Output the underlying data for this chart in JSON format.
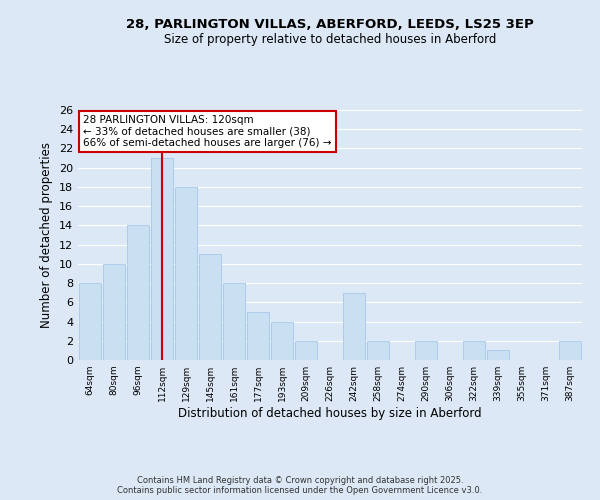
{
  "title1": "28, PARLINGTON VILLAS, ABERFORD, LEEDS, LS25 3EP",
  "title2": "Size of property relative to detached houses in Aberford",
  "xlabel": "Distribution of detached houses by size in Aberford",
  "ylabel": "Number of detached properties",
  "categories": [
    "64sqm",
    "80sqm",
    "96sqm",
    "112sqm",
    "129sqm",
    "145sqm",
    "161sqm",
    "177sqm",
    "193sqm",
    "209sqm",
    "226sqm",
    "242sqm",
    "258sqm",
    "274sqm",
    "290sqm",
    "306sqm",
    "322sqm",
    "339sqm",
    "355sqm",
    "371sqm",
    "387sqm"
  ],
  "values": [
    8,
    10,
    14,
    21,
    18,
    11,
    8,
    5,
    4,
    2,
    0,
    7,
    2,
    0,
    2,
    0,
    2,
    1,
    0,
    0,
    2
  ],
  "bar_color": "#c9dff2",
  "bar_edge_color": "#a8c8e8",
  "vline_x_idx": 3,
  "vline_color": "#cc0000",
  "ylim": [
    0,
    26
  ],
  "yticks": [
    0,
    2,
    4,
    6,
    8,
    10,
    12,
    14,
    16,
    18,
    20,
    22,
    24,
    26
  ],
  "annotation_title": "28 PARLINGTON VILLAS: 120sqm",
  "annotation_line1": "← 33% of detached houses are smaller (38)",
  "annotation_line2": "66% of semi-detached houses are larger (76) →",
  "annotation_box_color": "#ffffff",
  "annotation_box_edge": "#cc0000",
  "footer1": "Contains HM Land Registry data © Crown copyright and database right 2025.",
  "footer2": "Contains public sector information licensed under the Open Government Licence v3.0.",
  "fig_bg_color": "#dce8f5",
  "plot_bg_color": "#dce8f5"
}
